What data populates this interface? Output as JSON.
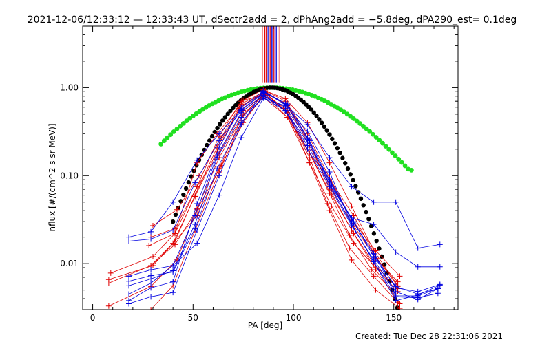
{
  "chart_data": {
    "type": "line",
    "title": "2021-12-06/12:33:12 — 12:33:43 UT, dSectr2add = 2, dPhAng2add = −5.8deg, dPA290_est=  0.1deg",
    "xlabel": "PA [deg]",
    "ylabel": "nflux [#/(cm^2 s sr MeV)]",
    "xlim": [
      -5,
      182
    ],
    "ylim": [
      0.003,
      5.0
    ],
    "yscale": "log",
    "xticks": [
      0,
      50,
      100,
      150
    ],
    "xtick_labels": [
      "0",
      "50",
      "100",
      "150"
    ],
    "yticks": [
      0.01,
      0.1,
      1.0
    ],
    "ytick_labels": [
      "0.01",
      "0.10",
      "1.00"
    ],
    "grid": false,
    "colors": {
      "red": "#e00000",
      "blue": "#0000e0",
      "green": "#20e020",
      "black": "#000000"
    },
    "vertical_lines": [
      {
        "x": 84.5,
        "color": "red"
      },
      {
        "x": 85.8,
        "color": "red"
      },
      {
        "x": 86.5,
        "color": "red"
      },
      {
        "x": 86.9,
        "color": "blue"
      },
      {
        "x": 87.6,
        "color": "blue"
      },
      {
        "x": 88.4,
        "color": "red"
      },
      {
        "x": 89.1,
        "color": "blue"
      },
      {
        "x": 89.7,
        "color": "blue"
      },
      {
        "x": 90.3,
        "color": "red"
      },
      {
        "x": 90.9,
        "color": "blue"
      },
      {
        "x": 91.5,
        "color": "blue"
      },
      {
        "x": 92.3,
        "color": "red"
      },
      {
        "x": 93.2,
        "color": "red"
      }
    ],
    "vertical_lines_ymin": 1.15,
    "fit_green": {
      "a": 0.0,
      "sigma": 32,
      "center": 89,
      "floor": 0.11,
      "xmin": 34,
      "xmax": 159
    },
    "fit_black": {
      "sigma": 18.5,
      "center": 89,
      "xmin": 40,
      "xmax": 159
    },
    "series": [
      {
        "color": "red",
        "x": [
          8,
          29,
          42,
          52,
          63,
          75,
          86,
          97,
          108,
          117,
          128,
          140,
          152
        ],
        "y": [
          0.0033,
          0.0055,
          0.011,
          0.042,
          0.16,
          0.48,
          0.88,
          0.52,
          0.16,
          0.048,
          0.015,
          0.0072,
          0.0036
        ]
      },
      {
        "color": "red",
        "x": [
          8,
          30,
          41,
          51,
          62,
          74,
          86,
          97,
          108,
          118,
          129,
          140,
          152
        ],
        "y": [
          0.0066,
          0.0095,
          0.018,
          0.06,
          0.21,
          0.62,
          0.9,
          0.63,
          0.24,
          0.07,
          0.024,
          0.01,
          0.0052
        ]
      },
      {
        "color": "red",
        "x": [
          9,
          30,
          41,
          52,
          63,
          74,
          85,
          96,
          107,
          118,
          129,
          141,
          153
        ],
        "y": [
          0.0078,
          0.012,
          0.022,
          0.075,
          0.28,
          0.7,
          0.95,
          0.7,
          0.3,
          0.094,
          0.032,
          0.014,
          0.0072
        ]
      },
      {
        "color": "red",
        "x": [
          8,
          29,
          40,
          51,
          62,
          73,
          84,
          95,
          107,
          118,
          128,
          139,
          151
        ],
        "y": [
          0.006,
          0.0095,
          0.017,
          0.058,
          0.19,
          0.58,
          0.84,
          0.58,
          0.2,
          0.063,
          0.021,
          0.0085,
          0.0045
        ]
      },
      {
        "color": "red",
        "x": [
          29,
          40,
          51,
          63,
          74,
          85,
          97,
          108,
          118,
          129,
          141,
          153
        ],
        "y": [
          0.003,
          0.0056,
          0.024,
          0.11,
          0.4,
          0.78,
          0.46,
          0.14,
          0.04,
          0.011,
          0.005,
          0.0031
        ]
      },
      {
        "color": "red",
        "x": [
          28,
          41,
          52,
          62,
          74,
          86,
          96,
          107,
          118,
          129,
          140,
          152
        ],
        "y": [
          0.016,
          0.022,
          0.14,
          0.3,
          0.65,
          0.92,
          0.75,
          0.4,
          0.14,
          0.045,
          0.014,
          0.0056
        ]
      },
      {
        "color": "red",
        "x": [
          29,
          41,
          52,
          63,
          75,
          86,
          97,
          108,
          119,
          130,
          141,
          152
        ],
        "y": [
          0.02,
          0.025,
          0.075,
          0.18,
          0.55,
          0.86,
          0.52,
          0.14,
          0.045,
          0.017,
          0.009,
          0.0048
        ]
      },
      {
        "color": "red",
        "x": [
          30,
          42,
          53,
          64,
          75,
          86,
          97,
          108,
          119,
          130,
          141,
          152
        ],
        "y": [
          0.027,
          0.041,
          0.1,
          0.27,
          0.72,
          0.82,
          0.46,
          0.18,
          0.085,
          0.035,
          0.012,
          0.0055
        ]
      },
      {
        "color": "red",
        "x": [
          29,
          41,
          52,
          64,
          75,
          86,
          97,
          108,
          119,
          130,
          141,
          152
        ],
        "y": [
          0.0095,
          0.0165,
          0.041,
          0.13,
          0.4,
          0.88,
          0.62,
          0.22,
          0.07,
          0.027,
          0.0115,
          0.0062
        ]
      },
      {
        "color": "red",
        "x": [
          30,
          41,
          52,
          63,
          75,
          86,
          97,
          108,
          119,
          130,
          141,
          153
        ],
        "y": [
          0.0095,
          0.018,
          0.035,
          0.12,
          0.5,
          0.85,
          0.55,
          0.18,
          0.06,
          0.022,
          0.0085,
          0.0035
        ]
      },
      {
        "color": "blue",
        "x": [
          18,
          29,
          40,
          52,
          63,
          74,
          85,
          97,
          108,
          119,
          130,
          140,
          151,
          162,
          172
        ],
        "y": [
          0.02,
          0.023,
          0.05,
          0.15,
          0.3,
          0.56,
          0.88,
          0.65,
          0.25,
          0.08,
          0.03,
          0.012,
          0.0055,
          0.0045,
          0.0052
        ]
      },
      {
        "color": "blue",
        "x": [
          18,
          29,
          40,
          51,
          63,
          74,
          85,
          96,
          107,
          118,
          129,
          140,
          151,
          162,
          172
        ],
        "y": [
          0.018,
          0.019,
          0.024,
          0.083,
          0.25,
          0.55,
          0.86,
          0.54,
          0.2,
          0.075,
          0.027,
          0.011,
          0.0048,
          0.0039,
          0.0052
        ]
      },
      {
        "color": "blue",
        "x": [
          18,
          29,
          40,
          52,
          63,
          74,
          85,
          96,
          107,
          118,
          129,
          140,
          151,
          162,
          173
        ],
        "y": [
          0.0072,
          0.0085,
          0.0095,
          0.017,
          0.06,
          0.27,
          0.76,
          0.55,
          0.24,
          0.09,
          0.032,
          0.013,
          0.0053,
          0.0048,
          0.0058
        ]
      },
      {
        "color": "blue",
        "x": [
          18,
          29,
          40,
          51,
          62,
          74,
          85,
          96,
          107,
          118,
          130,
          141,
          151,
          162,
          172
        ],
        "y": [
          0.0063,
          0.0073,
          0.008,
          0.025,
          0.12,
          0.4,
          0.8,
          0.6,
          0.26,
          0.085,
          0.029,
          0.012,
          0.0043,
          0.0043,
          0.0052
        ]
      },
      {
        "color": "blue",
        "x": [
          18,
          29,
          40,
          51,
          62,
          74,
          85,
          96,
          107,
          118,
          129,
          140,
          151,
          162,
          172
        ],
        "y": [
          0.0056,
          0.0067,
          0.0083,
          0.028,
          0.16,
          0.46,
          0.76,
          0.62,
          0.32,
          0.11,
          0.028,
          0.0105,
          0.0042,
          0.0041,
          0.0046
        ]
      },
      {
        "color": "blue",
        "x": [
          18,
          29,
          40,
          52,
          63,
          74,
          85,
          96,
          107,
          118,
          129,
          140,
          151,
          162,
          173
        ],
        "y": [
          0.0035,
          0.0042,
          0.0047,
          0.024,
          0.1,
          0.38,
          0.92,
          0.66,
          0.27,
          0.08,
          0.033,
          0.028,
          0.0135,
          0.0092,
          0.0092
        ]
      },
      {
        "color": "blue",
        "x": [
          18,
          29,
          40,
          52,
          63,
          74,
          85,
          96,
          107,
          118,
          129,
          140,
          151,
          162,
          173
        ],
        "y": [
          0.0038,
          0.0053,
          0.0062,
          0.048,
          0.21,
          0.6,
          0.91,
          0.64,
          0.38,
          0.16,
          0.075,
          0.05,
          0.05,
          0.015,
          0.0165
        ]
      },
      {
        "color": "blue",
        "x": [
          18,
          29,
          40,
          51,
          62,
          74,
          85,
          96,
          107,
          118,
          129,
          140,
          151,
          162,
          173
        ],
        "y": [
          0.0045,
          0.006,
          0.0095,
          0.035,
          0.17,
          0.52,
          0.82,
          0.55,
          0.22,
          0.08,
          0.028,
          0.0105,
          0.0038,
          0.0044,
          0.0057
        ]
      }
    ]
  },
  "footer": {
    "created": "Created: Tue Dec 28 22:31:06 2021"
  }
}
